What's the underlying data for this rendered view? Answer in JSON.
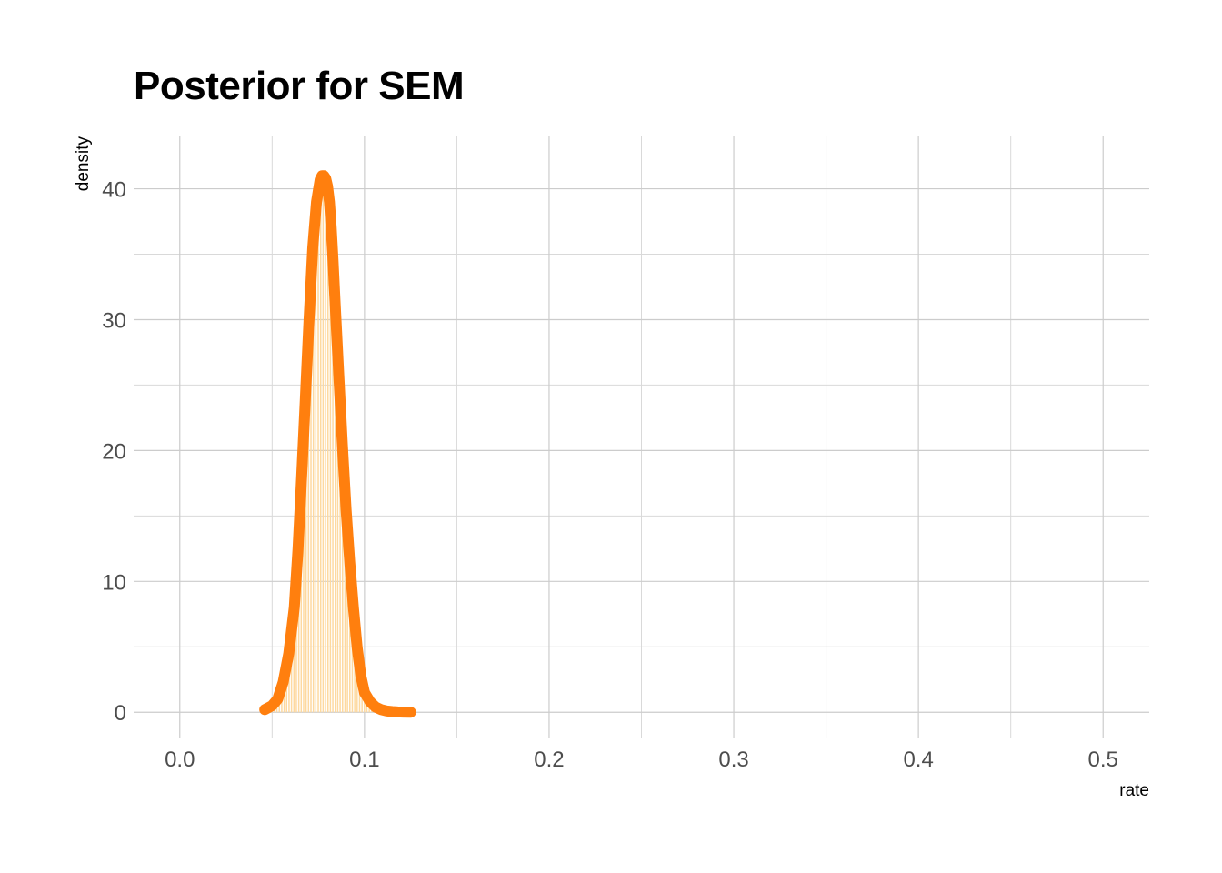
{
  "chart_data": {
    "type": "area",
    "title": "Posterior for SEM",
    "xlabel": "rate",
    "ylabel": "density",
    "xlim": [
      -0.025,
      0.525
    ],
    "ylim": [
      -2,
      44
    ],
    "x_ticks": [
      0.0,
      0.1,
      0.2,
      0.3,
      0.4,
      0.5
    ],
    "x_tick_labels": [
      "0.0",
      "0.1",
      "0.2",
      "0.3",
      "0.4",
      "0.5"
    ],
    "y_ticks": [
      0,
      10,
      20,
      30,
      40
    ],
    "y_tick_labels": [
      "0",
      "10",
      "20",
      "30",
      "40"
    ],
    "grid": true,
    "series": [
      {
        "x": [
          0.046,
          0.05,
          0.053,
          0.056,
          0.059,
          0.062,
          0.064,
          0.066,
          0.068,
          0.07,
          0.072,
          0.074,
          0.076,
          0.077,
          0.078,
          0.079,
          0.08,
          0.081,
          0.082,
          0.083,
          0.084,
          0.086,
          0.088,
          0.09,
          0.092,
          0.094,
          0.096,
          0.098,
          0.1,
          0.103,
          0.106,
          0.109,
          0.112,
          0.115,
          0.118,
          0.121,
          0.125
        ],
        "y": [
          0.2,
          0.5,
          1.0,
          2.3,
          4.5,
          8.0,
          12.5,
          18.0,
          24.0,
          30.0,
          35.5,
          39.0,
          40.7,
          41.0,
          41.0,
          40.8,
          40.2,
          39.0,
          37.0,
          34.5,
          31.5,
          26.0,
          20.5,
          15.5,
          11.5,
          8.0,
          5.0,
          2.8,
          1.5,
          0.8,
          0.4,
          0.2,
          0.1,
          0.05,
          0.02,
          0.01,
          0.0
        ]
      }
    ],
    "colors": {
      "line": "#ff7f0e",
      "fill": "#fdd9a0"
    }
  }
}
